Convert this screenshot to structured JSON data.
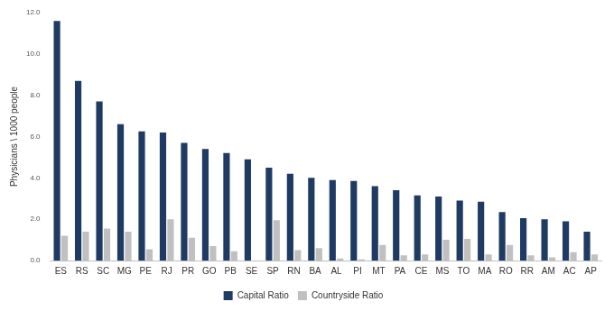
{
  "chart_data": {
    "type": "bar",
    "y_label": "Physicians \\ 1000 people",
    "categories": [
      "ES",
      "RS",
      "SC",
      "MG",
      "PE",
      "RJ",
      "PR",
      "GO",
      "PB",
      "SE",
      "SP",
      "RN",
      "BA",
      "AL",
      "PI",
      "MT",
      "PA",
      "CE",
      "MS",
      "TO",
      "MA",
      "RO",
      "RR",
      "AM",
      "AC",
      "AP"
    ],
    "series": [
      {
        "name": "Capital Ratio",
        "color": "#1f3b63",
        "values": [
          11.6,
          8.7,
          7.7,
          6.6,
          6.25,
          6.2,
          5.7,
          5.4,
          5.2,
          4.9,
          4.5,
          4.2,
          4.0,
          3.9,
          3.85,
          3.6,
          3.4,
          3.15,
          3.1,
          2.9,
          2.85,
          2.35,
          2.05,
          2.0,
          1.9,
          1.4
        ]
      },
      {
        "name": "Countryside Ratio",
        "color": "#c0c0c0",
        "values": [
          1.2,
          1.4,
          1.55,
          1.4,
          0.55,
          2.0,
          1.1,
          0.7,
          0.45,
          0.0,
          1.95,
          0.5,
          0.6,
          0.1,
          0.05,
          0.75,
          0.25,
          0.3,
          1.0,
          1.05,
          0.3,
          0.75,
          0.25,
          0.15,
          0.4,
          0.3
        ]
      }
    ],
    "ylim": [
      0,
      12
    ],
    "yticks": [
      {
        "value": 0,
        "label": "0.0"
      },
      {
        "value": 2,
        "label": "2.0"
      },
      {
        "value": 4,
        "label": "4.0"
      },
      {
        "value": 6,
        "label": "6.0"
      },
      {
        "value": 8,
        "label": "8.0"
      },
      {
        "value": 10,
        "label": "10.0"
      },
      {
        "value": 12,
        "label": "12.0"
      }
    ],
    "grid": false,
    "legend": "bottom"
  }
}
